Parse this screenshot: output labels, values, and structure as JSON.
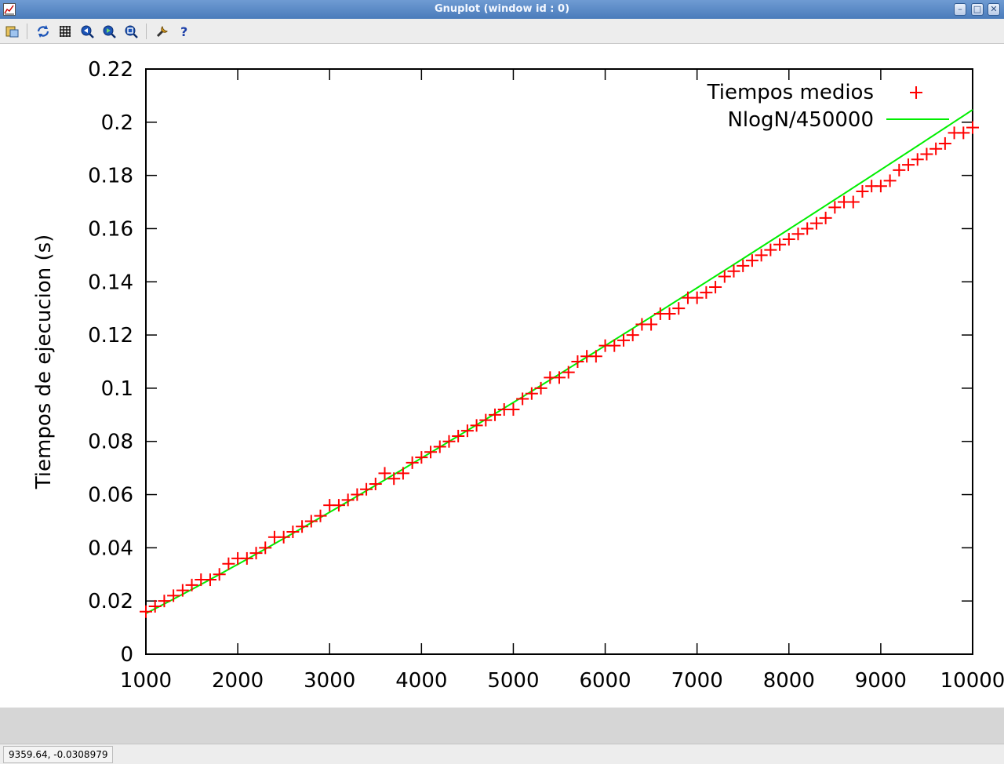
{
  "window": {
    "title": "Gnuplot (window id : 0)"
  },
  "toolbar": {
    "icons": [
      "copy-clipboard-icon",
      "replot-icon",
      "grid-icon",
      "zoom-prev-icon",
      "zoom-next-icon",
      "unzoom-icon",
      "settings-icon",
      "help-icon"
    ]
  },
  "status": {
    "coords": "9359.64, -0.0308979"
  },
  "chart_data": {
    "type": "scatter",
    "xlim": [
      1000,
      10000
    ],
    "ylim": [
      0,
      0.22
    ],
    "xticks": [
      "1000",
      "2000",
      "3000",
      "4000",
      "5000",
      "6000",
      "7000",
      "8000",
      "9000",
      "10000"
    ],
    "yticks": [
      "0",
      "0.02",
      "0.04",
      "0.06",
      "0.08",
      "0.1",
      "0.12",
      "0.14",
      "0.16",
      "0.18",
      "0.2",
      "0.22"
    ],
    "ylabel": "Tiempos de ejecucion (s)",
    "xlabel": "",
    "grid": false,
    "legend_position": "top-right",
    "colors": {
      "points": "#ff0000",
      "line": "#00ee00"
    },
    "series": [
      {
        "name": "Tiempos medios",
        "kind": "points",
        "x": [
          1000,
          1100,
          1200,
          1300,
          1400,
          1500,
          1600,
          1700,
          1800,
          1900,
          2000,
          2100,
          2200,
          2300,
          2400,
          2500,
          2600,
          2700,
          2800,
          2900,
          3000,
          3100,
          3200,
          3300,
          3400,
          3500,
          3600,
          3700,
          3800,
          3900,
          4000,
          4100,
          4200,
          4300,
          4400,
          4500,
          4600,
          4700,
          4800,
          4900,
          5000,
          5100,
          5200,
          5300,
          5400,
          5500,
          5600,
          5700,
          5800,
          5900,
          6000,
          6100,
          6200,
          6300,
          6400,
          6500,
          6600,
          6700,
          6800,
          6900,
          7000,
          7100,
          7200,
          7300,
          7400,
          7500,
          7600,
          7700,
          7800,
          7900,
          8000,
          8100,
          8200,
          8300,
          8400,
          8500,
          8600,
          8700,
          8800,
          8900,
          9000,
          9100,
          9200,
          9300,
          9400,
          9500,
          9600,
          9700,
          9800,
          9900,
          10000
        ],
        "y": [
          0.016,
          0.018,
          0.02,
          0.022,
          0.024,
          0.026,
          0.028,
          0.028,
          0.03,
          0.034,
          0.036,
          0.036,
          0.038,
          0.04,
          0.044,
          0.044,
          0.046,
          0.048,
          0.05,
          0.052,
          0.056,
          0.056,
          0.058,
          0.06,
          0.062,
          0.064,
          0.068,
          0.066,
          0.068,
          0.072,
          0.074,
          0.076,
          0.078,
          0.08,
          0.082,
          0.084,
          0.086,
          0.088,
          0.09,
          0.092,
          0.092,
          0.096,
          0.098,
          0.1,
          0.104,
          0.104,
          0.106,
          0.11,
          0.112,
          0.112,
          0.116,
          0.116,
          0.118,
          0.12,
          0.124,
          0.124,
          0.128,
          0.128,
          0.13,
          0.134,
          0.134,
          0.136,
          0.138,
          0.142,
          0.144,
          0.146,
          0.148,
          0.15,
          0.152,
          0.154,
          0.156,
          0.158,
          0.16,
          0.162,
          0.164,
          0.168,
          0.17,
          0.17,
          0.174,
          0.176,
          0.176,
          0.178,
          0.182,
          0.184,
          0.186,
          0.188,
          0.19,
          0.192,
          0.196,
          0.196,
          0.198
        ]
      },
      {
        "name": "NlogN/450000",
        "kind": "line",
        "formula": "N*log(N)/450000"
      }
    ]
  }
}
